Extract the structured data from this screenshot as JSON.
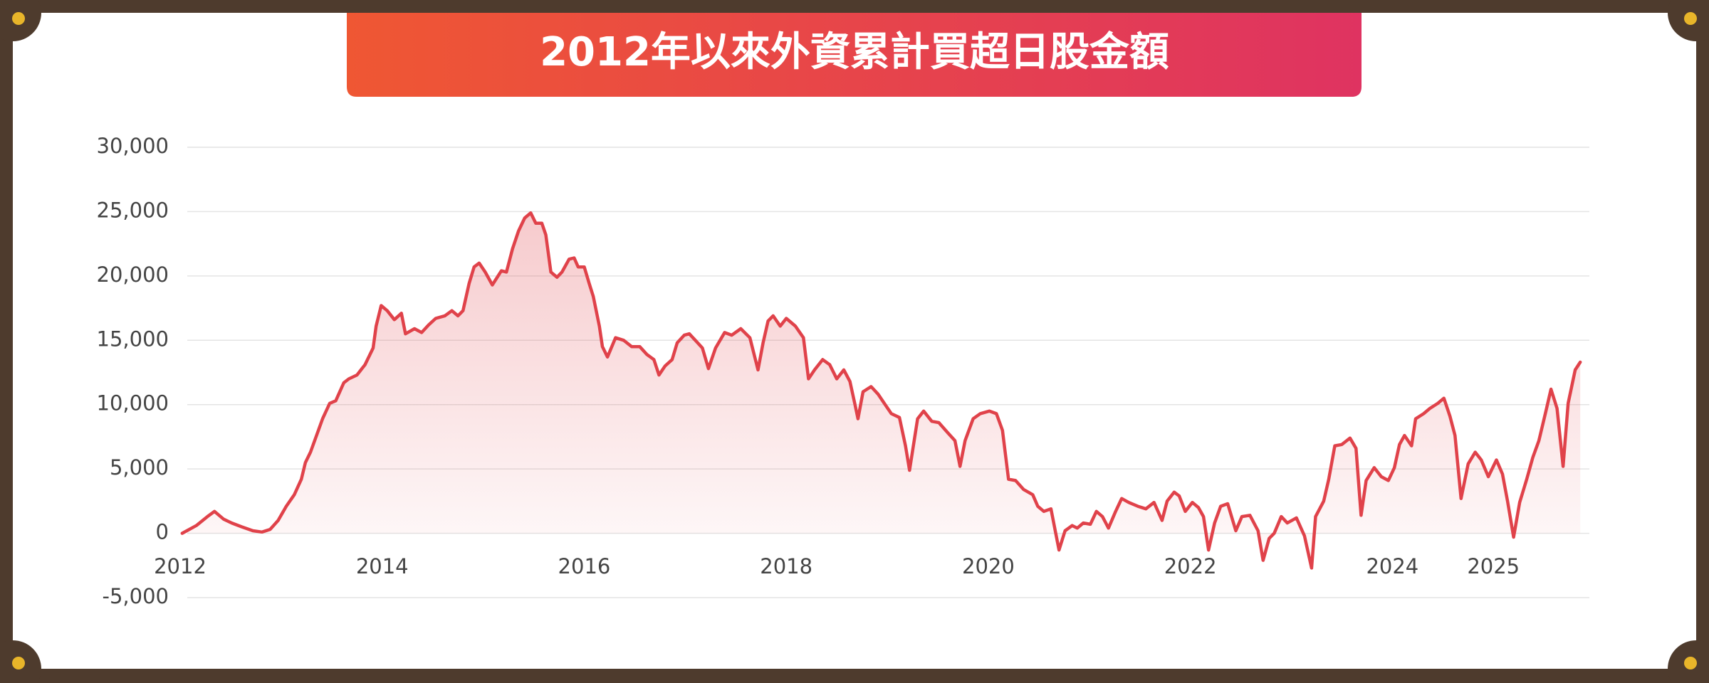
{
  "chart_data": {
    "type": "area",
    "title": "2012年以來外資累計買超日股金額",
    "x": [
      2012.02,
      2012.16,
      2012.27,
      2012.34,
      2012.43,
      2012.51,
      2012.61,
      2012.72,
      2012.81,
      2012.89,
      2012.97,
      2013.05,
      2013.13,
      2013.2,
      2013.24,
      2013.29,
      2013.35,
      2013.41,
      2013.48,
      2013.54,
      2013.62,
      2013.67,
      2013.75,
      2013.83,
      2013.91,
      2013.94,
      2013.99,
      2014.05,
      2014.12,
      2014.19,
      2014.23,
      2014.32,
      2014.39,
      2014.46,
      2014.53,
      2014.62,
      2014.69,
      2014.75,
      2014.8,
      2014.86,
      2014.91,
      2014.96,
      2015.02,
      2015.09,
      2015.18,
      2015.23,
      2015.29,
      2015.35,
      2015.41,
      2015.47,
      2015.52,
      2015.58,
      2015.62,
      2015.67,
      2015.73,
      2015.78,
      2015.85,
      2015.9,
      2015.94,
      2016.0,
      2016.05,
      2016.09,
      2016.15,
      2016.18,
      2016.23,
      2016.31,
      2016.39,
      2016.47,
      2016.55,
      2016.62,
      2016.69,
      2016.74,
      2016.8,
      2016.87,
      2016.92,
      2016.99,
      2017.04,
      2017.1,
      2017.17,
      2017.23,
      2017.3,
      2017.39,
      2017.46,
      2017.55,
      2017.64,
      2017.72,
      2017.77,
      2017.82,
      2017.87,
      2017.94,
      2018.0,
      2018.09,
      2018.17,
      2018.22,
      2018.28,
      2018.36,
      2018.43,
      2018.5,
      2018.57,
      2018.63,
      2018.68,
      2018.71,
      2018.76,
      2018.84,
      2018.91,
      2018.97,
      2019.04,
      2019.12,
      2019.18,
      2019.22,
      2019.3,
      2019.36,
      2019.44,
      2019.51,
      2019.6,
      2019.67,
      2019.72,
      2019.77,
      2019.85,
      2019.92,
      2020.01,
      2020.08,
      2020.14,
      2020.2,
      2020.27,
      2020.35,
      2020.44,
      2020.49,
      2020.55,
      2020.62,
      2020.7,
      2020.76,
      2020.83,
      2020.88,
      2020.94,
      2021.01,
      2021.07,
      2021.13,
      2021.19,
      2021.26,
      2021.32,
      2021.39,
      2021.48,
      2021.56,
      2021.64,
      2021.72,
      2021.77,
      2021.84,
      2021.89,
      2021.95,
      2022.02,
      2022.08,
      2022.13,
      2022.18,
      2022.24,
      2022.3,
      2022.37,
      2022.45,
      2022.51,
      2022.59,
      2022.67,
      2022.72,
      2022.78,
      2022.83,
      2022.9,
      2022.96,
      2023.05,
      2023.13,
      2023.2,
      2023.24,
      2023.32,
      2023.37,
      2023.43,
      2023.5,
      2023.58,
      2023.64,
      2023.69,
      2023.74,
      2023.82,
      2023.89,
      2023.96,
      2024.02,
      2024.07,
      2024.12,
      2024.19,
      2024.23,
      2024.31,
      2024.37,
      2024.45,
      2024.51,
      2024.57,
      2024.62,
      2024.68,
      2024.75,
      2024.82,
      2024.88,
      2024.95,
      2025.03,
      2025.09,
      2025.14,
      2025.2,
      2025.26,
      2025.33,
      2025.39,
      2025.45,
      2025.52,
      2025.57,
      2025.63,
      2025.69,
      2025.74,
      2025.81,
      2025.86
    ],
    "series": [
      {
        "color": "#e0424a",
        "values": [
          0,
          600,
          1300,
          1700,
          1100,
          800,
          500,
          200,
          100,
          300,
          1000,
          2100,
          3000,
          4200,
          5500,
          6300,
          7600,
          8900,
          10100,
          10300,
          11700,
          12000,
          12300,
          13100,
          14400,
          16100,
          17700,
          17300,
          16600,
          17100,
          15500,
          15900,
          15600,
          16200,
          16700,
          16900,
          17300,
          16900,
          17300,
          19400,
          20700,
          21000,
          20300,
          19300,
          20400,
          20300,
          22100,
          23500,
          24500,
          24900,
          24100,
          24100,
          23200,
          20300,
          19900,
          20300,
          21300,
          21400,
          20700,
          20700,
          19400,
          18400,
          16100,
          14500,
          13700,
          15200,
          15000,
          14500,
          14500,
          13900,
          13500,
          12300,
          13000,
          13500,
          14800,
          15400,
          15500,
          15000,
          14400,
          12800,
          14400,
          15600,
          15400,
          15900,
          15200,
          12700,
          14800,
          16500,
          16900,
          16100,
          16700,
          16100,
          15200,
          12000,
          12700,
          13500,
          13100,
          12000,
          12700,
          11800,
          10000,
          8900,
          11000,
          11400,
          10800,
          10100,
          9300,
          9000,
          6800,
          4900,
          8900,
          9500,
          8700,
          8600,
          7800,
          7200,
          5200,
          7200,
          8900,
          9300,
          9500,
          9300,
          8000,
          4200,
          4100,
          3400,
          3000,
          2100,
          1700,
          1900,
          -1300,
          200,
          600,
          400,
          800,
          700,
          1700,
          1300,
          400,
          1700,
          2700,
          2400,
          2100,
          1900,
          2400,
          1000,
          2500,
          3200,
          2900,
          1700,
          2400,
          2000,
          1300,
          -1300,
          800,
          2100,
          2300,
          200,
          1300,
          1400,
          200,
          -2100,
          -400,
          0,
          1300,
          800,
          1200,
          -200,
          -2700,
          1300,
          2500,
          4200,
          6800,
          6900,
          7400,
          6600,
          1400,
          4100,
          5100,
          4400,
          4100,
          5100,
          6900,
          7600,
          6800,
          8900,
          9300,
          9700,
          10100,
          10500,
          9100,
          7600,
          2700,
          5400,
          6300,
          5700,
          4400,
          5700,
          4600,
          2500,
          -300,
          2400,
          4200,
          5900,
          7200,
          9500,
          11200,
          9700,
          5200,
          10100,
          12700,
          13300
        ]
      }
    ],
    "xlim": [
      2012,
      2025.95
    ],
    "xticks": [
      2012,
      2014,
      2016,
      2018,
      2020,
      2022,
      2024,
      2025
    ],
    "ylim": [
      -5000,
      30000
    ],
    "yticks": [
      {
        "value": -5000,
        "label": "-5,000"
      },
      0,
      {
        "value": 5000,
        "label": "5,000"
      },
      {
        "value": 10000,
        "label": "10,000"
      },
      {
        "value": 15000,
        "label": "15,000"
      },
      {
        "value": 20000,
        "label": "20,000"
      },
      {
        "value": 25000,
        "label": "25,000"
      },
      {
        "value": 30000,
        "label": "30,000"
      }
    ],
    "grid": true
  }
}
